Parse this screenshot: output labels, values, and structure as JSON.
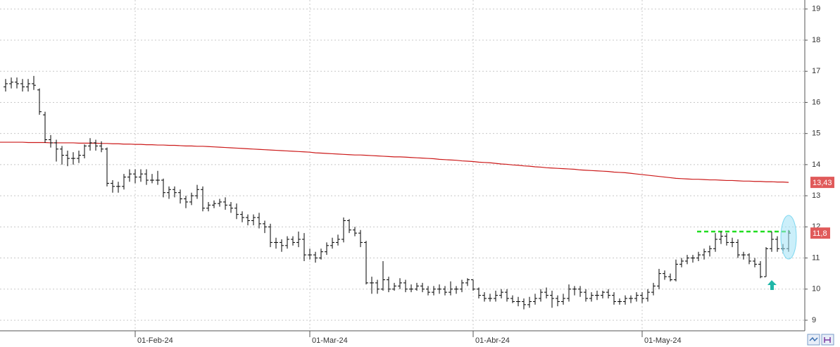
{
  "chart_data": {
    "type": "ohlc",
    "categories": [
      null,
      null,
      null,
      null,
      null,
      null,
      null,
      null,
      null,
      null,
      null,
      null,
      null,
      null,
      null,
      null,
      null,
      null,
      null,
      null,
      null,
      null,
      null,
      "01-Feb-24",
      null,
      null,
      null,
      null,
      null,
      null,
      null,
      null,
      null,
      null,
      null,
      null,
      null,
      null,
      null,
      null,
      null,
      null,
      null,
      null,
      null,
      null,
      null,
      null,
      null,
      null,
      null,
      null,
      null,
      null,
      "01-Mar-24",
      null,
      null,
      null,
      null,
      null,
      null,
      null,
      null,
      null,
      null,
      null,
      null,
      null,
      null,
      null,
      null,
      null,
      null,
      null,
      null,
      null,
      null,
      null,
      null,
      null,
      null,
      null,
      null,
      "01-Abr-24",
      null,
      null,
      null,
      null,
      null,
      null,
      null,
      null,
      null,
      null,
      null,
      null,
      null,
      null,
      null,
      null,
      null,
      null,
      null,
      null,
      null,
      null,
      null,
      null,
      null,
      null,
      null,
      null,
      null,
      "01-May-24",
      null,
      null,
      null,
      null,
      null,
      null,
      null,
      null,
      null,
      null,
      null,
      null,
      null,
      null,
      null,
      null,
      null,
      null,
      null,
      null,
      null,
      null,
      null,
      null,
      null,
      null
    ],
    "open": [
      16.5,
      16.6,
      16.65,
      16.6,
      16.5,
      16.6,
      16.4,
      15.6,
      14.8,
      14.7,
      14.5,
      14.3,
      14.2,
      14.2,
      14.3,
      14.6,
      14.7,
      14.6,
      14.5,
      13.4,
      13.3,
      13.3,
      13.6,
      13.7,
      13.6,
      13.7,
      13.5,
      13.5,
      13.5,
      13.1,
      13.2,
      13.1,
      12.9,
      12.8,
      13.0,
      13.2,
      12.6,
      12.7,
      12.75,
      12.8,
      12.7,
      12.6,
      12.4,
      12.3,
      12.2,
      12.3,
      12.1,
      12.0,
      11.5,
      11.5,
      11.4,
      11.6,
      11.5,
      11.6,
      11.1,
      11.1,
      11.0,
      11.2,
      11.4,
      11.5,
      11.6,
      12.2,
      11.9,
      11.8,
      11.5,
      10.2,
      10.2,
      10.0,
      10.3,
      10.0,
      10.1,
      10.2,
      10.0,
      10.0,
      10.1,
      10.0,
      9.9,
      10.0,
      10.0,
      9.9,
      10.0,
      10.0,
      10.2,
      10.3,
      10.0,
      9.8,
      9.7,
      9.7,
      9.8,
      9.9,
      9.7,
      9.6,
      9.6,
      9.5,
      9.6,
      9.7,
      9.9,
      9.8,
      9.7,
      9.6,
      9.7,
      10.0,
      10.0,
      9.9,
      9.7,
      9.8,
      9.8,
      9.9,
      9.8,
      9.6,
      9.6,
      9.7,
      9.7,
      9.8,
      9.7,
      9.9,
      10.1,
      10.5,
      10.4,
      10.3,
      10.8,
      10.9,
      11.0,
      11.0,
      11.1,
      11.2,
      11.3,
      11.6,
      11.7,
      11.5,
      11.5,
      11.1,
      11.1,
      10.9,
      10.8,
      10.4,
      11.3,
      11.6,
      11.3,
      11.3
    ],
    "high": [
      16.75,
      16.8,
      16.8,
      16.75,
      16.75,
      16.85,
      16.45,
      15.7,
      14.95,
      14.8,
      14.6,
      14.45,
      14.4,
      14.45,
      14.65,
      14.85,
      14.8,
      14.75,
      14.55,
      13.5,
      13.45,
      13.7,
      13.85,
      13.85,
      13.85,
      13.85,
      13.7,
      13.8,
      13.55,
      13.3,
      13.3,
      13.2,
      13.0,
      13.1,
      13.35,
      13.3,
      12.8,
      12.85,
      12.9,
      12.95,
      12.8,
      12.75,
      12.5,
      12.4,
      12.4,
      12.45,
      12.2,
      12.1,
      11.65,
      11.6,
      11.7,
      11.7,
      11.85,
      11.8,
      11.3,
      11.2,
      11.3,
      11.5,
      11.65,
      11.75,
      12.3,
      12.25,
      12.0,
      11.9,
      11.55,
      10.4,
      10.3,
      10.9,
      10.4,
      10.2,
      10.35,
      10.3,
      10.15,
      10.2,
      10.2,
      10.1,
      10.1,
      10.15,
      10.1,
      10.25,
      10.1,
      10.3,
      10.35,
      10.3,
      10.05,
      9.9,
      9.85,
      9.95,
      10.0,
      10.0,
      9.8,
      9.75,
      9.7,
      9.75,
      9.85,
      10.0,
      10.05,
      9.95,
      9.8,
      9.85,
      10.15,
      10.1,
      10.1,
      10.0,
      9.9,
      9.95,
      9.95,
      10.0,
      9.9,
      9.7,
      9.8,
      9.8,
      9.9,
      9.9,
      10.0,
      10.2,
      10.65,
      10.6,
      10.5,
      10.95,
      11.0,
      11.1,
      11.1,
      11.2,
      11.3,
      11.4,
      11.8,
      11.85,
      11.8,
      11.65,
      11.6,
      11.2,
      11.15,
      11.0,
      10.9,
      11.35,
      11.85,
      11.7,
      11.45,
      11.9
    ],
    "low": [
      16.35,
      16.45,
      16.45,
      16.35,
      16.35,
      16.4,
      15.6,
      14.7,
      14.55,
      14.1,
      14.0,
      13.95,
      14.0,
      14.05,
      14.2,
      14.45,
      14.45,
      14.4,
      13.3,
      13.1,
      13.1,
      13.2,
      13.45,
      13.4,
      13.45,
      13.35,
      13.4,
      13.35,
      12.95,
      12.9,
      12.95,
      12.75,
      12.6,
      12.7,
      12.9,
      12.5,
      12.5,
      12.6,
      12.65,
      12.55,
      12.45,
      12.25,
      12.15,
      12.05,
      12.05,
      11.95,
      11.8,
      11.35,
      11.3,
      11.2,
      11.3,
      11.4,
      11.35,
      10.9,
      10.95,
      10.85,
      10.95,
      11.1,
      11.3,
      11.4,
      11.5,
      11.8,
      11.7,
      11.35,
      10.15,
      9.85,
      9.85,
      9.95,
      9.9,
      9.95,
      10.0,
      9.9,
      9.9,
      9.95,
      9.9,
      9.8,
      9.8,
      9.85,
      9.8,
      9.8,
      9.85,
      9.9,
      10.1,
      9.95,
      9.7,
      9.6,
      9.6,
      9.6,
      9.7,
      9.6,
      9.55,
      9.45,
      9.35,
      9.4,
      9.5,
      9.6,
      9.7,
      9.4,
      9.45,
      9.5,
      9.6,
      9.8,
      9.75,
      9.6,
      9.6,
      9.65,
      9.7,
      9.7,
      9.5,
      9.5,
      9.5,
      9.55,
      9.6,
      9.55,
      9.6,
      9.8,
      10.0,
      10.3,
      10.25,
      10.25,
      10.7,
      10.8,
      10.85,
      10.9,
      10.95,
      11.05,
      11.2,
      11.45,
      11.4,
      11.35,
      11.0,
      10.95,
      10.8,
      10.7,
      10.35,
      10.4,
      11.2,
      11.2,
      11.15,
      11.2
    ],
    "close": [
      16.6,
      16.65,
      16.6,
      16.5,
      16.6,
      16.55,
      15.7,
      14.8,
      14.7,
      14.5,
      14.3,
      14.2,
      14.2,
      14.3,
      14.6,
      14.7,
      14.6,
      14.5,
      13.4,
      13.3,
      13.3,
      13.6,
      13.7,
      13.6,
      13.7,
      13.5,
      13.5,
      13.5,
      13.1,
      13.2,
      13.1,
      12.9,
      12.8,
      13.0,
      13.2,
      12.6,
      12.7,
      12.75,
      12.8,
      12.7,
      12.6,
      12.4,
      12.3,
      12.2,
      12.3,
      12.1,
      12.0,
      11.5,
      11.5,
      11.4,
      11.6,
      11.5,
      11.6,
      11.1,
      11.1,
      11.0,
      11.2,
      11.4,
      11.5,
      11.6,
      12.2,
      11.9,
      11.8,
      11.5,
      10.2,
      10.2,
      10.0,
      10.3,
      10.0,
      10.1,
      10.2,
      10.0,
      10.0,
      10.1,
      10.0,
      9.9,
      10.0,
      10.0,
      9.9,
      10.0,
      10.0,
      10.2,
      10.3,
      10.0,
      9.8,
      9.7,
      9.7,
      9.8,
      9.9,
      9.7,
      9.6,
      9.6,
      9.5,
      9.6,
      9.7,
      9.9,
      9.8,
      9.7,
      9.6,
      9.7,
      10.0,
      10.0,
      9.9,
      9.7,
      9.8,
      9.8,
      9.9,
      9.8,
      9.6,
      9.6,
      9.7,
      9.7,
      9.8,
      9.7,
      9.9,
      10.1,
      10.5,
      10.4,
      10.3,
      10.8,
      10.9,
      11.0,
      11.0,
      11.1,
      11.2,
      11.3,
      11.6,
      11.7,
      11.5,
      11.5,
      11.1,
      11.1,
      10.9,
      10.8,
      10.4,
      11.3,
      11.6,
      11.3,
      11.3,
      11.8
    ],
    "bar_color": "#000000",
    "lines": [
      {
        "color": "#cc1a1a",
        "values": [
          14.72,
          14.72,
          14.72,
          14.72,
          14.71,
          14.71,
          14.71,
          14.71,
          14.7,
          14.7,
          14.7,
          14.7,
          14.7,
          14.69,
          14.69,
          14.69,
          14.69,
          14.68,
          14.68,
          14.67,
          14.67,
          14.66,
          14.66,
          14.65,
          14.65,
          14.64,
          14.64,
          14.63,
          14.63,
          14.62,
          14.62,
          14.61,
          14.6,
          14.6,
          14.59,
          14.59,
          14.58,
          14.57,
          14.56,
          14.55,
          14.54,
          14.53,
          14.52,
          14.51,
          14.5,
          14.49,
          14.48,
          14.47,
          14.46,
          14.45,
          14.44,
          14.43,
          14.42,
          14.41,
          14.4,
          14.38,
          14.37,
          14.36,
          14.35,
          14.34,
          14.33,
          14.32,
          14.31,
          14.31,
          14.3,
          14.29,
          14.28,
          14.27,
          14.26,
          14.25,
          14.25,
          14.24,
          14.23,
          14.22,
          14.21,
          14.2,
          14.19,
          14.17,
          14.16,
          14.15,
          14.14,
          14.12,
          14.11,
          14.1,
          14.08,
          14.07,
          14.06,
          14.04,
          14.02,
          14.01,
          13.99,
          13.98,
          13.96,
          13.95,
          13.93,
          13.92,
          13.9,
          13.89,
          13.88,
          13.87,
          13.86,
          13.85,
          13.83,
          13.82,
          13.81,
          13.8,
          13.79,
          13.78,
          13.76,
          13.75,
          13.74,
          13.72,
          13.7,
          13.68,
          13.66,
          13.64,
          13.62,
          13.6,
          13.58,
          13.56,
          13.55,
          13.54,
          13.53,
          13.53,
          13.52,
          13.51,
          13.51,
          13.5,
          13.49,
          13.49,
          13.48,
          13.47,
          13.47,
          13.46,
          13.46,
          13.45,
          13.45,
          13.44,
          13.44,
          13.43
        ]
      }
    ],
    "ma_label": {
      "value": 13.43,
      "label": "13,43",
      "color": "#e05a5a"
    },
    "price_label": {
      "value": 11.8,
      "label": "11,8",
      "color": "#e05a5a"
    },
    "resistance": {
      "value": 11.85,
      "color": "#22dd22"
    },
    "ylim": [
      8.66,
      19.29
    ],
    "yticks": [
      9,
      10,
      11,
      12,
      13,
      14,
      15,
      16,
      17,
      18,
      19
    ],
    "grid": true
  }
}
